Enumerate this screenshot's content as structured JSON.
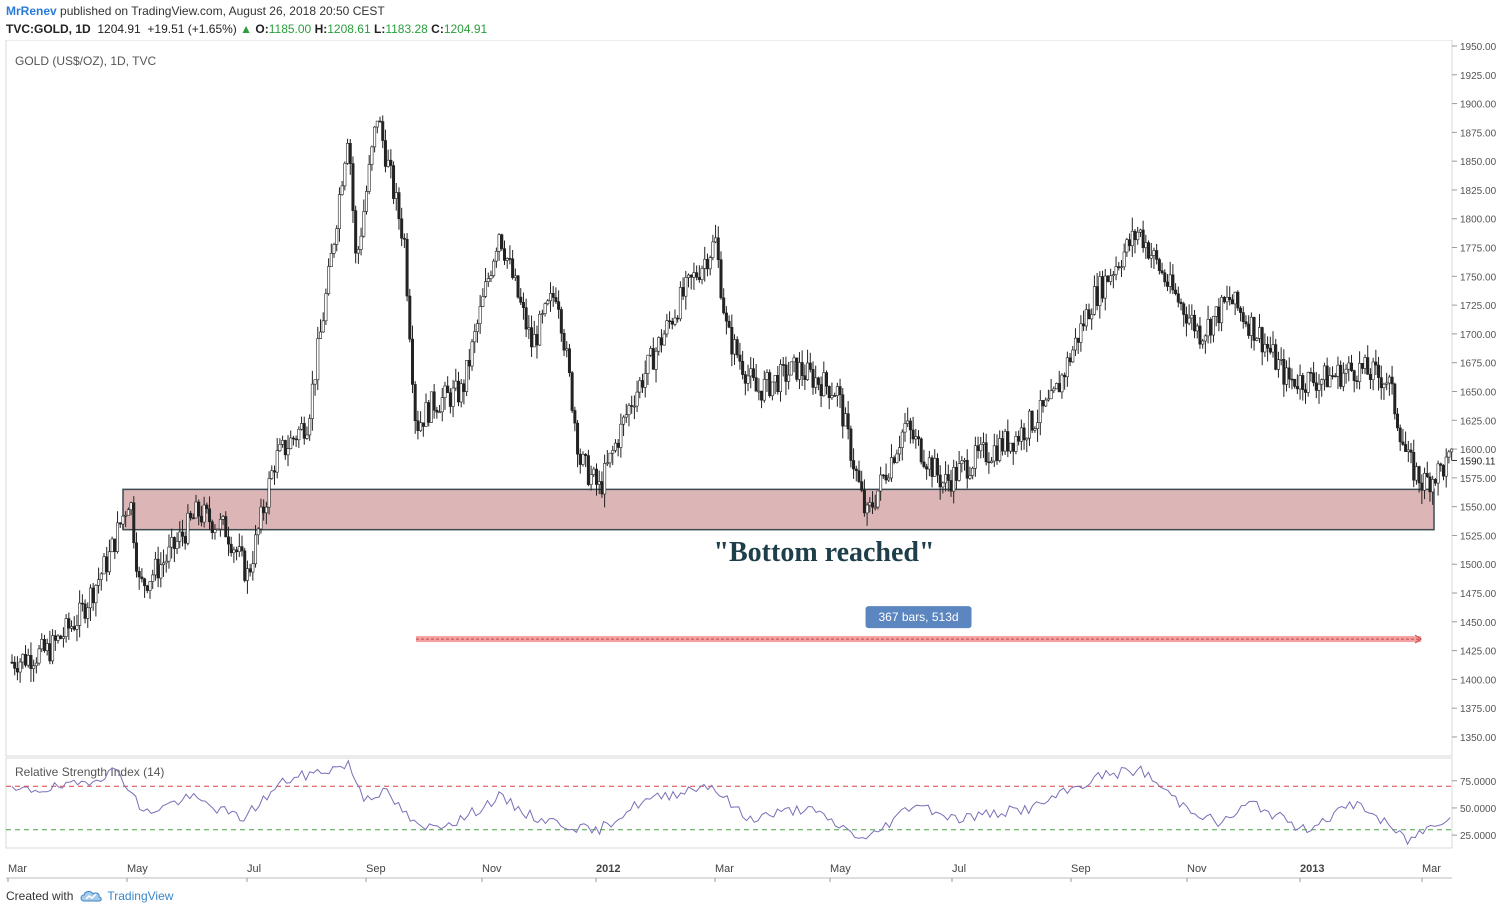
{
  "header": {
    "author": "MrRenev",
    "published": "published on TradingView.com, August 26, 2018 20:50 CEST",
    "symbol": "TVC:GOLD, 1D",
    "last": "1204.91",
    "change_arrow": "▲",
    "change": "+19.51 (+1.65%)",
    "o_label": "O:",
    "o_value": "1185.00",
    "h_label": "H:",
    "h_value": "1208.61",
    "l_label": "L:",
    "l_value": "1183.28",
    "c_label": "C:",
    "c_value": "1204.91"
  },
  "footer": {
    "created": "Created with",
    "brand": "TradingView",
    "brand_icon": "tradingview-cloud-icon"
  },
  "colors": {
    "zone_fill": "#dcb6b6",
    "zone_stroke": "#3b4a52",
    "annotation_text": "#1e3f4a",
    "measure_line": "#f28a8a",
    "measure_badge": "#5b86c0",
    "rsi_line": "#7a6fb8",
    "rsi_upper": "#d94343",
    "rsi_lower": "#4aa044",
    "positive": "#2a9d3c"
  },
  "chart_data": {
    "type": "candlestick",
    "title": "GOLD (US$/OZ), 1D, TVC",
    "x_ticks": [
      "Mar",
      "May",
      "Jul",
      "Sep",
      "Nov",
      "2012",
      "Mar",
      "May",
      "Jul",
      "Sep",
      "Nov",
      "2013",
      "Mar"
    ],
    "ylim": [
      1330,
      1950
    ],
    "y_ticks": [
      1350,
      1375,
      1400,
      1425,
      1450,
      1475,
      1500,
      1525,
      1550,
      1575,
      1600,
      1625,
      1650,
      1675,
      1700,
      1725,
      1750,
      1775,
      1800,
      1825,
      1850,
      1875,
      1900,
      1925,
      1950
    ],
    "last_price_label": "1590.11",
    "last_price": 1590.11,
    "price_path": [
      {
        "date": "2011-03-01",
        "price": 1415
      },
      {
        "date": "2011-03-20",
        "price": 1425
      },
      {
        "date": "2011-04-05",
        "price": 1455
      },
      {
        "date": "2011-04-20",
        "price": 1505
      },
      {
        "date": "2011-05-01",
        "price": 1560
      },
      {
        "date": "2011-05-06",
        "price": 1480
      },
      {
        "date": "2011-05-20",
        "price": 1505
      },
      {
        "date": "2011-06-05",
        "price": 1545
      },
      {
        "date": "2011-06-20",
        "price": 1530
      },
      {
        "date": "2011-07-01",
        "price": 1490
      },
      {
        "date": "2011-07-15",
        "price": 1590
      },
      {
        "date": "2011-08-01",
        "price": 1625
      },
      {
        "date": "2011-08-12",
        "price": 1750
      },
      {
        "date": "2011-08-22",
        "price": 1880
      },
      {
        "date": "2011-08-26",
        "price": 1760
      },
      {
        "date": "2011-09-06",
        "price": 1890
      },
      {
        "date": "2011-09-20",
        "price": 1780
      },
      {
        "date": "2011-09-26",
        "price": 1620
      },
      {
        "date": "2011-10-05",
        "price": 1640
      },
      {
        "date": "2011-10-20",
        "price": 1650
      },
      {
        "date": "2011-11-08",
        "price": 1790
      },
      {
        "date": "2011-11-25",
        "price": 1690
      },
      {
        "date": "2011-12-08",
        "price": 1740
      },
      {
        "date": "2011-12-20",
        "price": 1590
      },
      {
        "date": "2011-12-30",
        "price": 1565
      },
      {
        "date": "2012-01-15",
        "price": 1640
      },
      {
        "date": "2012-02-10",
        "price": 1730
      },
      {
        "date": "2012-02-28",
        "price": 1780
      },
      {
        "date": "2012-03-05",
        "price": 1700
      },
      {
        "date": "2012-03-20",
        "price": 1650
      },
      {
        "date": "2012-04-10",
        "price": 1670
      },
      {
        "date": "2012-05-01",
        "price": 1650
      },
      {
        "date": "2012-05-16",
        "price": 1540
      },
      {
        "date": "2012-06-05",
        "price": 1620
      },
      {
        "date": "2012-06-25",
        "price": 1570
      },
      {
        "date": "2012-07-10",
        "price": 1590
      },
      {
        "date": "2012-08-01",
        "price": 1610
      },
      {
        "date": "2012-08-20",
        "price": 1640
      },
      {
        "date": "2012-09-10",
        "price": 1730
      },
      {
        "date": "2012-10-04",
        "price": 1790
      },
      {
        "date": "2012-10-20",
        "price": 1740
      },
      {
        "date": "2012-11-05",
        "price": 1700
      },
      {
        "date": "2012-11-20",
        "price": 1730
      },
      {
        "date": "2012-12-05",
        "price": 1700
      },
      {
        "date": "2012-12-20",
        "price": 1660
      },
      {
        "date": "2013-01-05",
        "price": 1660
      },
      {
        "date": "2013-01-25",
        "price": 1670
      },
      {
        "date": "2013-02-10",
        "price": 1660
      },
      {
        "date": "2013-02-20",
        "price": 1590
      },
      {
        "date": "2013-02-28",
        "price": 1570
      },
      {
        "date": "2013-03-15",
        "price": 1590
      }
    ],
    "support_zone": [
      1530,
      1565
    ],
    "annotation": "\"Bottom reached\"",
    "measurement": {
      "label": "367 bars, 513d",
      "from": "2011-09-26",
      "to": "2013-02-27",
      "price": 1435
    },
    "rsi": {
      "title": "Relative Strength Index (14)",
      "ylim": [
        15,
        95
      ],
      "ticks": [
        25,
        50,
        75
      ],
      "tick_labels": [
        "25.0000",
        "50.0000",
        "75.0000"
      ],
      "overbought": 70,
      "oversold": 30,
      "path": [
        {
          "date": "2011-03-01",
          "price": 65
        },
        {
          "date": "2011-04-01",
          "price": 70
        },
        {
          "date": "2011-04-25",
          "price": 85
        },
        {
          "date": "2011-05-08",
          "price": 45
        },
        {
          "date": "2011-06-01",
          "price": 60
        },
        {
          "date": "2011-06-28",
          "price": 40
        },
        {
          "date": "2011-07-20",
          "price": 75
        },
        {
          "date": "2011-08-22",
          "price": 90
        },
        {
          "date": "2011-08-30",
          "price": 60
        },
        {
          "date": "2011-09-10",
          "price": 65
        },
        {
          "date": "2011-09-28",
          "price": 30
        },
        {
          "date": "2011-10-20",
          "price": 40
        },
        {
          "date": "2011-11-08",
          "price": 60
        },
        {
          "date": "2011-11-25",
          "price": 42
        },
        {
          "date": "2011-12-28",
          "price": 28
        },
        {
          "date": "2012-01-20",
          "price": 55
        },
        {
          "date": "2012-02-25",
          "price": 72
        },
        {
          "date": "2012-03-15",
          "price": 40
        },
        {
          "date": "2012-04-15",
          "price": 50
        },
        {
          "date": "2012-05-16",
          "price": 20
        },
        {
          "date": "2012-06-10",
          "price": 55
        },
        {
          "date": "2012-07-01",
          "price": 40
        },
        {
          "date": "2012-08-10",
          "price": 50
        },
        {
          "date": "2012-09-15",
          "price": 80
        },
        {
          "date": "2012-10-05",
          "price": 85
        },
        {
          "date": "2012-10-25",
          "price": 55
        },
        {
          "date": "2012-11-15",
          "price": 35
        },
        {
          "date": "2012-12-01",
          "price": 55
        },
        {
          "date": "2012-12-28",
          "price": 30
        },
        {
          "date": "2013-01-25",
          "price": 55
        },
        {
          "date": "2013-02-20",
          "price": 20
        },
        {
          "date": "2013-03-15",
          "price": 45
        }
      ]
    }
  }
}
